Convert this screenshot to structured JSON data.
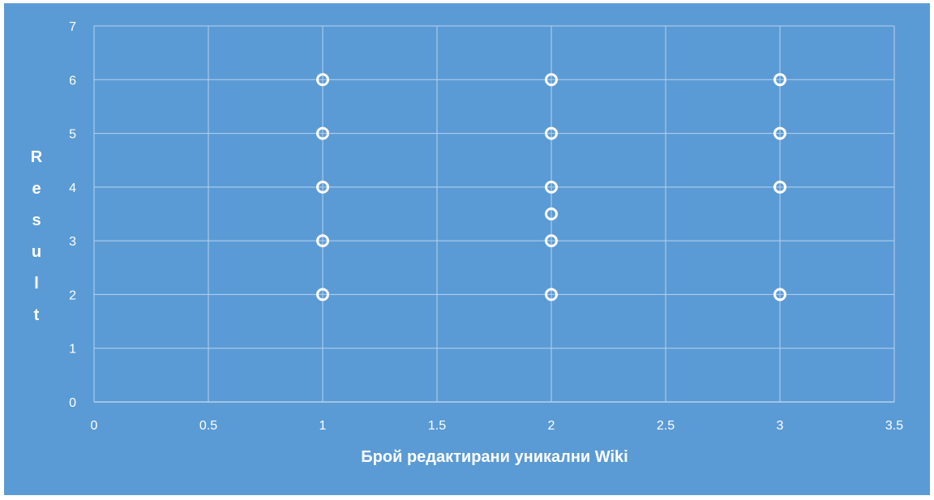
{
  "colors": {
    "background": "#5b9bd5",
    "grid": "#b7d2ee",
    "marker": "#ffffff",
    "text": "#ffffff"
  },
  "chart_data": {
    "type": "scatter",
    "title": "",
    "xlabel": "Брой редактирани уникални Wiki",
    "ylabel": "Result",
    "xlim": [
      0,
      3.5
    ],
    "ylim": [
      0,
      7
    ],
    "xticks": [
      "0",
      "0.5",
      "1",
      "1.5",
      "2",
      "2.5",
      "3",
      "3.5"
    ],
    "yticks": [
      "0",
      "1",
      "2",
      "3",
      "4",
      "5",
      "6",
      "7"
    ],
    "grid": true,
    "legend": "none",
    "marker": "open-circle",
    "points": [
      {
        "x": 1,
        "y": 6
      },
      {
        "x": 1,
        "y": 5
      },
      {
        "x": 1,
        "y": 4
      },
      {
        "x": 1,
        "y": 3
      },
      {
        "x": 1,
        "y": 2
      },
      {
        "x": 2,
        "y": 6
      },
      {
        "x": 2,
        "y": 5
      },
      {
        "x": 2,
        "y": 4
      },
      {
        "x": 2,
        "y": 3.5
      },
      {
        "x": 2,
        "y": 3
      },
      {
        "x": 2,
        "y": 2
      },
      {
        "x": 3,
        "y": 6
      },
      {
        "x": 3,
        "y": 5
      },
      {
        "x": 3,
        "y": 4
      },
      {
        "x": 3,
        "y": 2
      }
    ]
  }
}
